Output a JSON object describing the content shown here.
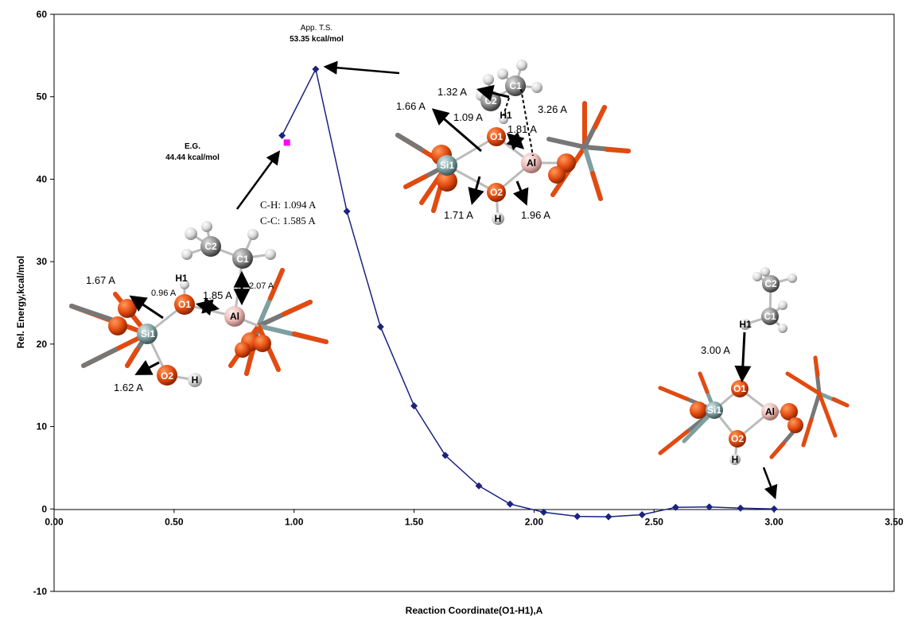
{
  "chart_data": {
    "type": "line",
    "xlabel": "Reaction Coordinate(O1-H1),A",
    "ylabel": "Rel. Energy,kcal/mol",
    "xlim": [
      0,
      3.5
    ],
    "ylim": [
      -10,
      60
    ],
    "x_ticks": [
      "0.00",
      "0.50",
      "1.00",
      "1.50",
      "2.00",
      "2.50",
      "3.00",
      "3.50"
    ],
    "y_ticks": [
      "-10",
      "0",
      "10",
      "20",
      "30",
      "40",
      "50",
      "60"
    ],
    "grid": false,
    "series": [
      {
        "color": "#1a237e",
        "marker": "diamond",
        "points": [
          {
            "x": 0.95,
            "y": 45.3
          },
          {
            "x": 1.09,
            "y": 53.35
          },
          {
            "x": 1.22,
            "y": 36.1
          },
          {
            "x": 1.36,
            "y": 22.1
          },
          {
            "x": 1.5,
            "y": 12.5
          },
          {
            "x": 1.63,
            "y": 6.5
          },
          {
            "x": 1.77,
            "y": 2.8
          },
          {
            "x": 1.9,
            "y": 0.6
          },
          {
            "x": 2.04,
            "y": -0.4
          },
          {
            "x": 2.18,
            "y": -0.9
          },
          {
            "x": 2.31,
            "y": -0.95
          },
          {
            "x": 2.45,
            "y": -0.7
          },
          {
            "x": 2.59,
            "y": 0.2
          },
          {
            "x": 2.73,
            "y": 0.25
          },
          {
            "x": 2.86,
            "y": 0.1
          },
          {
            "x": 3.0,
            "y": 0.0
          }
        ]
      },
      {
        "color": "#ff00ff",
        "marker": "square",
        "points": [
          {
            "x": 0.97,
            "y": 44.44
          }
        ]
      }
    ],
    "annotations": {
      "ts_title": "App. T.S.",
      "ts_energy": "53.35 kcal/mol",
      "eg_title": "E.G.",
      "eg_energy": "44.44 kcal/mol",
      "ch_bond": "C-H: 1.094 A",
      "cc_bond": "C-C: 1.585 A"
    }
  },
  "structures": {
    "initial": {
      "atoms": [
        "C2",
        "C1",
        "H1",
        "O1",
        "Al",
        "Si1",
        "O2",
        "H"
      ],
      "distances": [
        "1.67 A",
        "0.96 A",
        "1.85 A",
        "2.07 A",
        "1.62 A"
      ]
    },
    "transition": {
      "atoms": [
        "C2",
        "C1",
        "H1",
        "O1",
        "Si1",
        "Al",
        "O2",
        "H"
      ],
      "distances": [
        "1.32 A",
        "1.66 A",
        "1.09 A",
        "1.81 A",
        "3.26 A",
        "1.71 A",
        "1.96  A"
      ]
    },
    "final": {
      "atoms": [
        "C2",
        "C1",
        "H1",
        "O1",
        "Si1",
        "Al",
        "O2",
        "H"
      ],
      "distances": [
        "3.00 A"
      ]
    }
  },
  "colors": {
    "oxygen": "#e34a10",
    "silicon": "#7f9fa0",
    "aluminium": "#e8b9b4",
    "carbon": "#8a8a8a",
    "hydrogen": "#dcdcdc",
    "line": "#1a237e",
    "marker_eg": "#ff00ff"
  }
}
